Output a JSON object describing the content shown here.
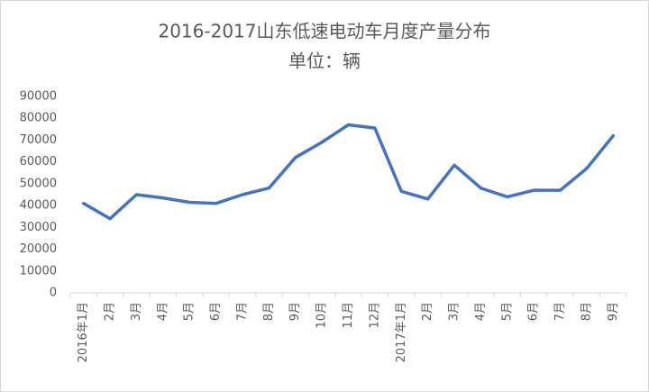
{
  "chart_data": {
    "type": "line",
    "title": "2016-2017山东低速电动车月度产量分布",
    "subtitle": "单位：辆",
    "categories": [
      "2016年1月",
      "2月",
      "3月",
      "4月",
      "5月",
      "6月",
      "7月",
      "8月",
      "9月",
      "10月",
      "11月",
      "12月",
      "2017年1月",
      "2月",
      "3月",
      "4月",
      "5月",
      "6月",
      "7月",
      "8月",
      "9月"
    ],
    "values": [
      41000,
      34000,
      45000,
      43500,
      41500,
      41000,
      45000,
      48000,
      62000,
      69000,
      77000,
      75500,
      46500,
      43000,
      58500,
      48000,
      44000,
      47000,
      47000,
      57000,
      72000
    ],
    "color": "#4472c4",
    "ylim": [
      0,
      90000
    ],
    "yticks": [
      0,
      10000,
      20000,
      30000,
      40000,
      50000,
      60000,
      70000,
      80000,
      90000
    ],
    "grid": false
  }
}
